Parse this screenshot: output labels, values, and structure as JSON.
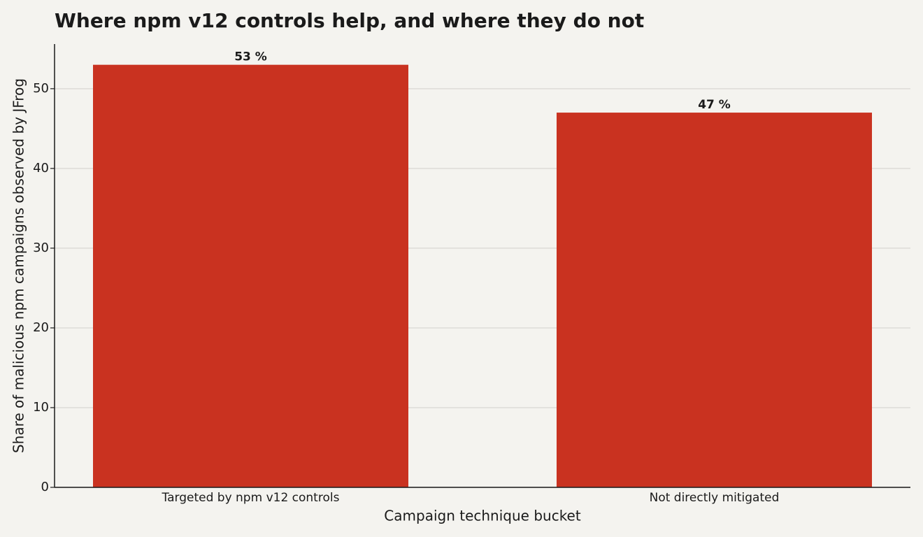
{
  "chart_data": {
    "type": "bar",
    "title": "Where npm v12 controls help, and where they do not",
    "x_label": "Campaign technique bucket",
    "y_label": "Share of malicious npm campaigns observed by JFrog",
    "categories": [
      "Targeted by npm v12 controls",
      "Not directly mitigated"
    ],
    "values": [
      53,
      47
    ],
    "value_labels": [
      "53 %",
      "47 %"
    ],
    "color": "#c93220",
    "ylim": [
      0,
      55.6
    ],
    "yticks": [
      0,
      10,
      20,
      30,
      40,
      50
    ],
    "grid": true
  }
}
